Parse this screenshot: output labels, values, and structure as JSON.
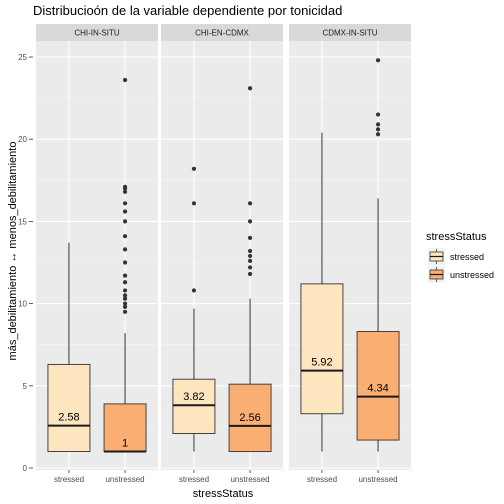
{
  "chart_data": {
    "type": "boxplot",
    "title": "Distribucioón de la variable dependiente por tonicidad",
    "xlabel": "stressStatus",
    "ylabel": "más_debilitamiento ↔ menos_debilitamiento",
    "ylim": [
      0,
      26
    ],
    "yticks": [
      0,
      5,
      10,
      15,
      20,
      25
    ],
    "categories": [
      "stressed",
      "unstressed"
    ],
    "legend": {
      "title": "stressStatus",
      "position": "right",
      "items": [
        {
          "label": "stressed",
          "color": "#FDE5BF"
        },
        {
          "label": "unstressed",
          "color": "#FBAE72"
        }
      ]
    },
    "panels": [
      {
        "name": "CHI-IN-SITU",
        "boxes": [
          {
            "category": "stressed",
            "min": 1,
            "q1": 1,
            "median": 2.58,
            "q3": 6.3,
            "max": 13.7,
            "median_label": "2.58",
            "outliers": []
          },
          {
            "category": "unstressed",
            "min": 1,
            "q1": 1,
            "median": 1,
            "q3": 3.9,
            "max": 8.2,
            "median_label": "1",
            "outliers": [
              9.5,
              9.8,
              10.0,
              10.3,
              10.5,
              10.8,
              11.3,
              11.7,
              12.5,
              13.3,
              14.1,
              15.0,
              15.6,
              16.1,
              16.8,
              17.0,
              17.1,
              23.6
            ]
          }
        ]
      },
      {
        "name": "CHI-EN-CDMX",
        "boxes": [
          {
            "category": "stressed",
            "min": 1,
            "q1": 2.1,
            "median": 3.82,
            "q3": 5.4,
            "max": 9.7,
            "median_label": "3.82",
            "outliers": [
              10.8,
              16.1,
              18.2
            ]
          },
          {
            "category": "unstressed",
            "min": 1,
            "q1": 1,
            "median": 2.56,
            "q3": 5.1,
            "max": 10.3,
            "median_label": "2.56",
            "outliers": [
              11.8,
              12.2,
              12.6,
              12.9,
              13.2,
              14.0,
              15.0,
              16.1,
              23.1
            ]
          }
        ]
      },
      {
        "name": "CDMX-IN-SITU",
        "boxes": [
          {
            "category": "stressed",
            "min": 1,
            "q1": 3.3,
            "median": 5.92,
            "q3": 11.2,
            "max": 20.4,
            "median_label": "5.92",
            "outliers": []
          },
          {
            "category": "unstressed",
            "min": 1,
            "q1": 1.7,
            "median": 4.34,
            "q3": 8.3,
            "max": 16.4,
            "median_label": "4.34",
            "outliers": [
              20.3,
              20.6,
              20.9,
              21.5,
              24.8
            ]
          }
        ]
      }
    ]
  }
}
